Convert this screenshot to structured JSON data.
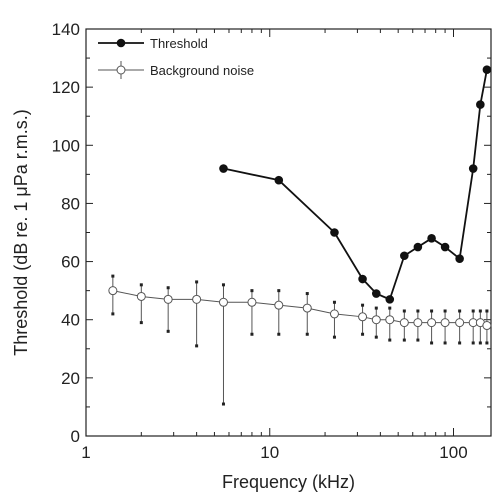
{
  "chart_data": {
    "type": "line",
    "xlabel": "Frequency (kHz)",
    "ylabel": "Threshold (dB re. 1 μPa r.m.s.)",
    "xscale": "log",
    "xlim": [
      1,
      160
    ],
    "ylim": [
      0,
      140
    ],
    "x_ticks": [
      1,
      10,
      100
    ],
    "x_tick_labels": [
      "1",
      "10",
      "100"
    ],
    "y_ticks": [
      0,
      20,
      40,
      60,
      80,
      100,
      120,
      140
    ],
    "y_tick_labels": [
      "0",
      "20",
      "40",
      "60",
      "80",
      "100",
      "120",
      "140"
    ],
    "grid": false,
    "legend_position": "top-left",
    "series": [
      {
        "name": "Threshold",
        "marker": "filled-circle",
        "color": "#111111",
        "x": [
          5.6,
          11.2,
          22.5,
          32,
          38,
          45,
          54,
          64,
          76,
          90,
          108,
          128,
          140,
          152
        ],
        "y": [
          92,
          88,
          70,
          54,
          49,
          47,
          62,
          65,
          68,
          65,
          61,
          92,
          114,
          126
        ]
      },
      {
        "name": "Background noise",
        "marker": "open-circle",
        "color": "#555555",
        "error_bars": true,
        "x": [
          1.4,
          2.0,
          2.8,
          4.0,
          5.6,
          8.0,
          11.2,
          16,
          22.5,
          32,
          38,
          45,
          54,
          64,
          76,
          90,
          108,
          128,
          140,
          152
        ],
        "y": [
          50,
          48,
          47,
          47,
          46,
          46,
          45,
          44,
          42,
          41,
          40,
          40,
          39,
          39,
          39,
          39,
          39,
          39,
          39,
          38
        ],
        "err_upper": [
          55,
          52,
          51,
          53,
          52,
          50,
          50,
          49,
          46,
          45,
          44,
          44,
          43,
          43,
          43,
          43,
          43,
          43,
          43,
          43
        ],
        "err_lower": [
          42,
          39,
          36,
          31,
          11,
          35,
          35,
          35,
          34,
          35,
          34,
          33,
          33,
          33,
          32,
          32,
          32,
          32,
          32,
          32
        ]
      }
    ]
  }
}
